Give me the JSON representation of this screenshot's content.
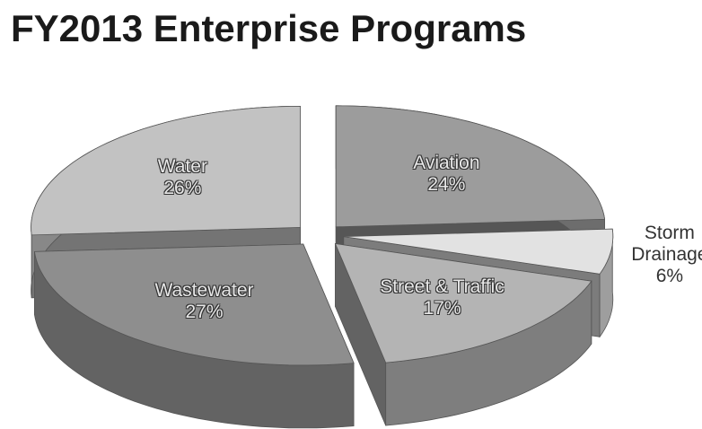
{
  "chart_data": {
    "type": "pie",
    "title": "FY2013 Enterprise Programs",
    "categories": [
      "Aviation",
      "Storm Drainage",
      "Street & Traffic",
      "Wastewater",
      "Water"
    ],
    "values": [
      24,
      6,
      17,
      27,
      26
    ],
    "value_labels": [
      "24%",
      "6%",
      "17%",
      "27%",
      "26%"
    ],
    "colors": [
      "#9c9c9c",
      "#e2e2e2",
      "#b4b4b4",
      "#8e8e8e",
      "#c2c2c2"
    ]
  }
}
